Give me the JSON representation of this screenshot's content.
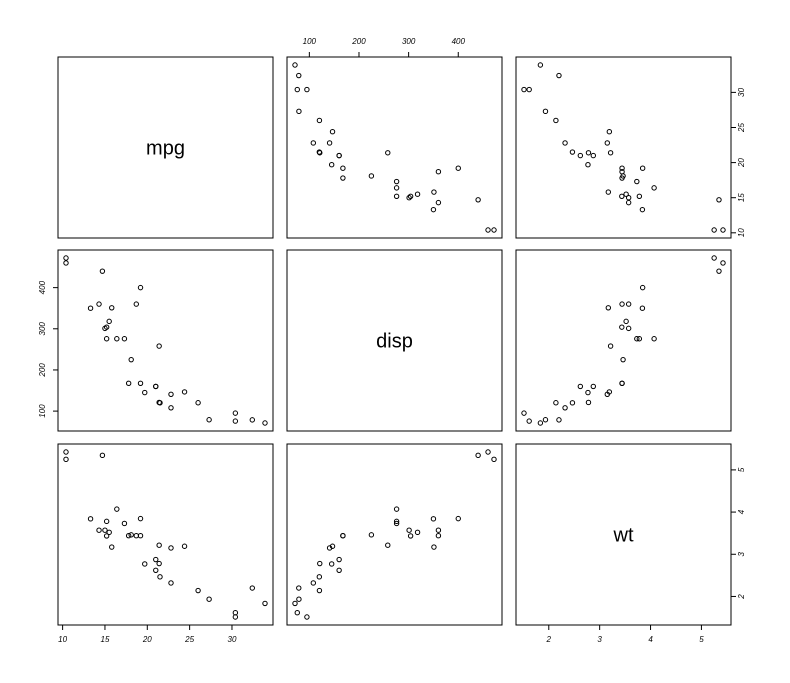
{
  "chart_data": {
    "type": "scatter",
    "kind": "pairs",
    "variables": [
      {
        "name": "mpg",
        "range": [
          10.4,
          33.9
        ],
        "ticks": [
          10,
          15,
          20,
          25,
          30
        ],
        "tick_labels": [
          "10",
          "15",
          "20",
          "25",
          "30"
        ]
      },
      {
        "name": "disp",
        "range": [
          71.1,
          472
        ],
        "ticks": [
          100,
          200,
          300,
          400
        ],
        "tick_labels": [
          "100",
          "200",
          "300",
          "400"
        ]
      },
      {
        "name": "wt",
        "range": [
          1.513,
          5.424
        ],
        "ticks": [
          2,
          3,
          4,
          5
        ],
        "tick_labels": [
          "2",
          "3",
          "4",
          "5"
        ]
      }
    ],
    "axis_sides": {
      "mpg": "bottom",
      "disp": "top-left",
      "wt": "right"
    },
    "points": [
      {
        "mpg": 21.0,
        "disp": 160,
        "wt": 2.62
      },
      {
        "mpg": 21.0,
        "disp": 160,
        "wt": 2.875
      },
      {
        "mpg": 22.8,
        "disp": 108,
        "wt": 2.32
      },
      {
        "mpg": 21.4,
        "disp": 258,
        "wt": 3.215
      },
      {
        "mpg": 18.7,
        "disp": 360,
        "wt": 3.44
      },
      {
        "mpg": 18.1,
        "disp": 225,
        "wt": 3.46
      },
      {
        "mpg": 14.3,
        "disp": 360,
        "wt": 3.57
      },
      {
        "mpg": 24.4,
        "disp": 146.7,
        "wt": 3.19
      },
      {
        "mpg": 22.8,
        "disp": 140.8,
        "wt": 3.15
      },
      {
        "mpg": 19.2,
        "disp": 167.6,
        "wt": 3.44
      },
      {
        "mpg": 17.8,
        "disp": 167.6,
        "wt": 3.44
      },
      {
        "mpg": 16.4,
        "disp": 275.8,
        "wt": 4.07
      },
      {
        "mpg": 17.3,
        "disp": 275.8,
        "wt": 3.73
      },
      {
        "mpg": 15.2,
        "disp": 275.8,
        "wt": 3.78
      },
      {
        "mpg": 10.4,
        "disp": 472,
        "wt": 5.25
      },
      {
        "mpg": 10.4,
        "disp": 460,
        "wt": 5.424
      },
      {
        "mpg": 14.7,
        "disp": 440,
        "wt": 5.345
      },
      {
        "mpg": 32.4,
        "disp": 78.7,
        "wt": 2.2
      },
      {
        "mpg": 30.4,
        "disp": 75.7,
        "wt": 1.615
      },
      {
        "mpg": 33.9,
        "disp": 71.1,
        "wt": 1.835
      },
      {
        "mpg": 21.5,
        "disp": 120.1,
        "wt": 2.465
      },
      {
        "mpg": 15.5,
        "disp": 318,
        "wt": 3.52
      },
      {
        "mpg": 15.2,
        "disp": 304,
        "wt": 3.435
      },
      {
        "mpg": 13.3,
        "disp": 350,
        "wt": 3.84
      },
      {
        "mpg": 19.2,
        "disp": 400,
        "wt": 3.845
      },
      {
        "mpg": 27.3,
        "disp": 79,
        "wt": 1.935
      },
      {
        "mpg": 26.0,
        "disp": 120.3,
        "wt": 2.14
      },
      {
        "mpg": 30.4,
        "disp": 95.1,
        "wt": 1.513
      },
      {
        "mpg": 15.8,
        "disp": 351,
        "wt": 3.17
      },
      {
        "mpg": 19.7,
        "disp": 145,
        "wt": 2.77
      },
      {
        "mpg": 15.0,
        "disp": 301,
        "wt": 3.57
      },
      {
        "mpg": 21.4,
        "disp": 121,
        "wt": 2.78
      }
    ],
    "grid": false,
    "legend": "none"
  }
}
